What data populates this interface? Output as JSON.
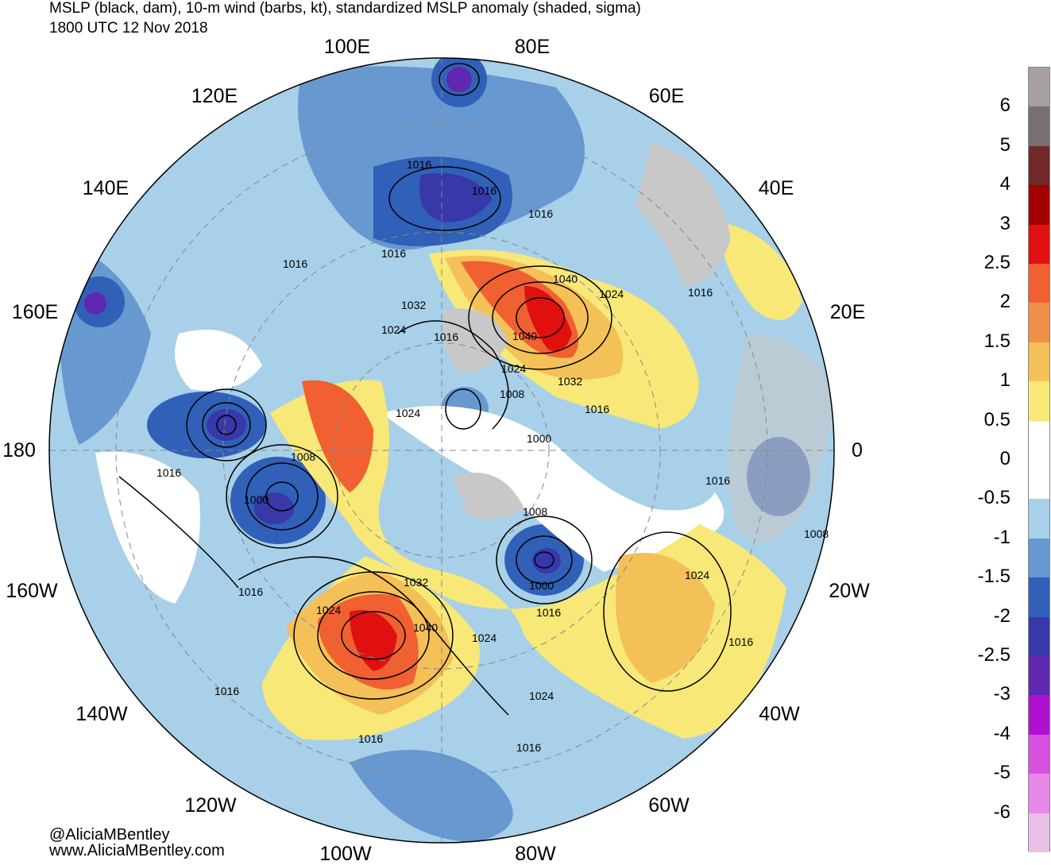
{
  "title": {
    "line1": "MSLP (black, dam), 10-m wind (barbs, kt), standardized MSLP anomaly (shaded, sigma)",
    "line2": "1800 UTC 12 Nov 2018"
  },
  "map": {
    "projection": "north-polar-stereographic",
    "longitude_labels": [
      "100E",
      "80E",
      "60E",
      "40E",
      "20E",
      "0",
      "20W",
      "40W",
      "60W",
      "80W",
      "100W",
      "120W",
      "140W",
      "160W",
      "180",
      "160E",
      "140E",
      "120E"
    ],
    "isobar_labels": [
      "1016",
      "1016",
      "1016",
      "1016",
      "1016",
      "1032",
      "1040",
      "1024",
      "1024",
      "1016",
      "1040",
      "1024",
      "1032",
      "1008",
      "1016",
      "1024",
      "1000",
      "1008",
      "1016",
      "1000",
      "1008",
      "1016",
      "1008",
      "1032",
      "1024",
      "1040",
      "1024",
      "1016",
      "1016",
      "1016",
      "1000",
      "1024",
      "1016",
      "1024",
      "1016",
      "1016",
      "1016",
      "1016"
    ],
    "colors": {
      "land": "#c8c8c8",
      "ocean": "#ffffff",
      "isobar": "#000000",
      "coastline": "#444444"
    }
  },
  "colorbar": {
    "labels": [
      "6",
      "5",
      "4",
      "3",
      "2.5",
      "2",
      "1.5",
      "1",
      "0.5",
      "0",
      "-0.5",
      "-1",
      "-1.5",
      "-2",
      "-2.5",
      "-3",
      "-4",
      "-5",
      "-6"
    ],
    "colors_top_to_bottom": [
      "#a8a0a0",
      "#787070",
      "#702828",
      "#a00000",
      "#e01010",
      "#f06030",
      "#f09048",
      "#f4c058",
      "#f8e878",
      "#ffffff",
      "#ffffff",
      "#a8d0e8",
      "#6898d0",
      "#3060b8",
      "#3838a8",
      "#6028b0",
      "#b010d0",
      "#d850e0",
      "#e888e8",
      "#e8c0e8"
    ]
  },
  "credits": {
    "handle": "@AliciaMBentley",
    "website": "www.AliciaMBentley.com"
  }
}
